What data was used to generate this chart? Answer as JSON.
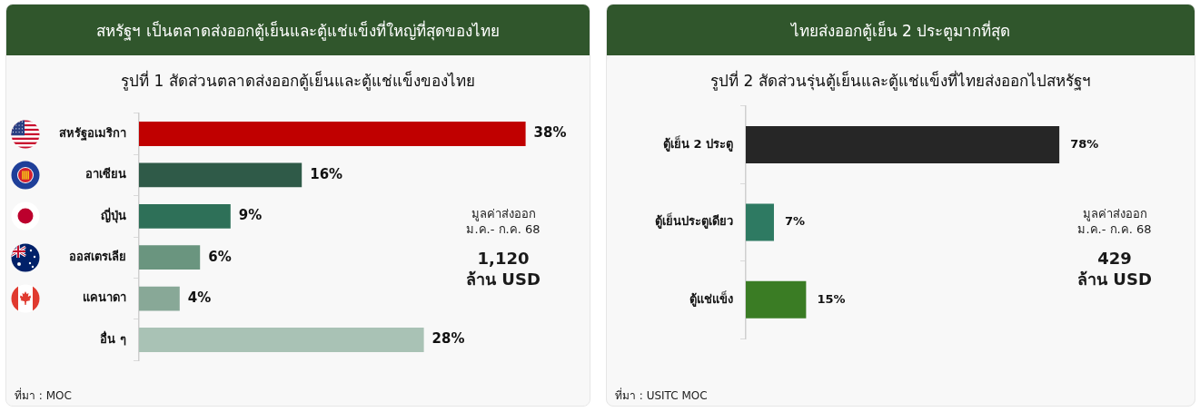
{
  "chart_data": [
    {
      "type": "bar",
      "orientation": "horizontal",
      "title": "สหรัฐฯ เป็นตลาดส่งออกตู้เย็นและตู้แช่แข็งที่ใหญ่ที่สุดของไทย",
      "subtitle": "รูปที่ 1 สัดส่วนตลาดส่งออกตู้เย็นและตู้แช่แข็งของไทย",
      "categories": [
        "สหรัฐอเมริกา",
        "อาเซียน",
        "ญี่ปุ่น",
        "ออสเตรเลีย",
        "แคนาดา",
        "อื่น ๆ"
      ],
      "values": [
        38,
        16,
        9,
        6,
        4,
        28
      ],
      "colors": [
        "#c00000",
        "#2f5a48",
        "#2e7058",
        "#6a957f",
        "#88a897",
        "#a9c2b5"
      ],
      "value_labels": [
        "38%",
        "16%",
        "9%",
        "6%",
        "4%",
        "28%"
      ],
      "tick_labels": "y",
      "annotations": [
        "มูลค่าส่งออก\nม.ค.- ก.ค. 68",
        "1,120\nล้าน USD",
        "ที่มา : MOC"
      ]
    },
    {
      "type": "bar",
      "orientation": "horizontal",
      "title": "ไทยส่งออกตู้เย็น 2 ประตูมากที่สุด",
      "subtitle": "รูปที่ 2 สัดส่วนรุ่นตู้เย็นและตู้แช่แข็งที่ไทยส่งออกไปสหรัฐฯ",
      "categories": [
        "ตู้เย็น 2 ประตู",
        "ตู้เย็นประตูเดียว",
        "ตู้แช่แข็ง"
      ],
      "values": [
        78,
        7,
        15
      ],
      "colors": [
        "#262626",
        "#2e7a62",
        "#3a7c24"
      ],
      "value_labels": [
        "78%",
        "7%",
        "15%"
      ],
      "tick_labels": "y",
      "annotations": [
        "มูลค่าส่งออก\nม.ค.- ก.ค. 68",
        "429\nล้าน USD",
        "ที่มา : USITC MOC"
      ]
    }
  ]
}
